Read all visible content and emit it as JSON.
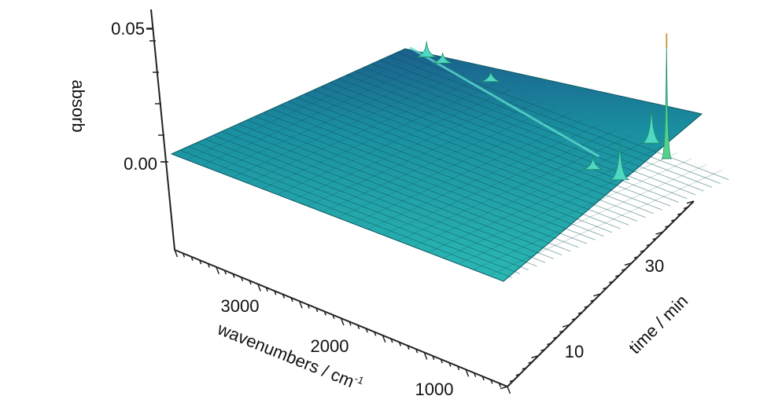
{
  "chart_data": {
    "type": "surface",
    "zlabel": "absorb",
    "xlabel": "wavenumbers / cm",
    "xlabel_superscript": "-1",
    "ylabel": "time / min",
    "z_ticks": [
      "0.05",
      "0.00"
    ],
    "x_ticks": [
      "3000",
      "2000",
      "1000"
    ],
    "y_ticks": [
      "30",
      "10"
    ],
    "x_range": [
      3800,
      700
    ],
    "y_range": [
      0,
      40
    ],
    "z_range": [
      0,
      0.05
    ],
    "peaks": [
      {
        "wavenumber": 3600,
        "time": 40,
        "absorb": 0.006
      },
      {
        "wavenumber": 3450,
        "time": 40,
        "absorb": 0.004
      },
      {
        "wavenumber": 3000,
        "time": 40,
        "absorb": 0.004
      },
      {
        "wavenumber": 1500,
        "time": 40,
        "absorb": 0.015
      },
      {
        "wavenumber": 1500,
        "time": 30,
        "absorb": 0.005
      },
      {
        "wavenumber": 1250,
        "time": 38,
        "absorb": 0.045
      },
      {
        "wavenumber": 1250,
        "time": 30,
        "absorb": 0.015
      }
    ],
    "colors": {
      "surface": "#1faaa8",
      "surface_dark": "#0f6f78",
      "back": "#1b5f8c",
      "peak": "#55d08a",
      "spike": "#c8a040"
    }
  }
}
